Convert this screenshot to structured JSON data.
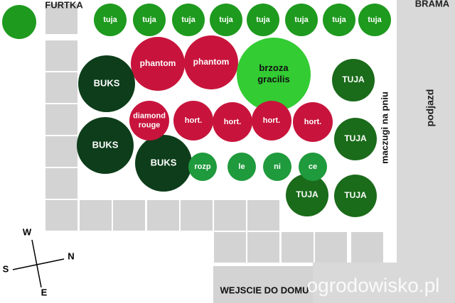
{
  "header": {
    "gate": "FURTKA",
    "main_gate": "BRAMA",
    "driveway": "podjazd",
    "entrance": "WEJSCIE DO DOMU",
    "side_note": "maczugi na pniu",
    "watermark": "ogrodowisko.pl"
  },
  "compass": {
    "west": "W",
    "north": "N",
    "south": "S",
    "east": "E"
  },
  "nodes": [
    {
      "label": "tuja"
    },
    {
      "label": "tuja"
    },
    {
      "label": "tuja"
    },
    {
      "label": "tuja"
    },
    {
      "label": "tuja"
    },
    {
      "label": "tuja"
    },
    {
      "label": "tuja"
    },
    {
      "label": "tuja"
    },
    {
      "label": "phantom"
    },
    {
      "label": "phantom"
    },
    {
      "label": "brzoza gracilis"
    },
    {
      "label": "TUJA"
    },
    {
      "label": "TUJA"
    },
    {
      "label": "TUJA"
    },
    {
      "label": "TUJA"
    },
    {
      "label": "BUKS"
    },
    {
      "label": "BUKS"
    },
    {
      "label": "BUKS"
    },
    {
      "label": "diamond rouge"
    },
    {
      "label": "hort."
    },
    {
      "label": "hort."
    },
    {
      "label": "hort."
    },
    {
      "label": "hort."
    },
    {
      "label": "rozp"
    },
    {
      "label": "le"
    },
    {
      "label": "ni"
    },
    {
      "label": "ce"
    }
  ]
}
